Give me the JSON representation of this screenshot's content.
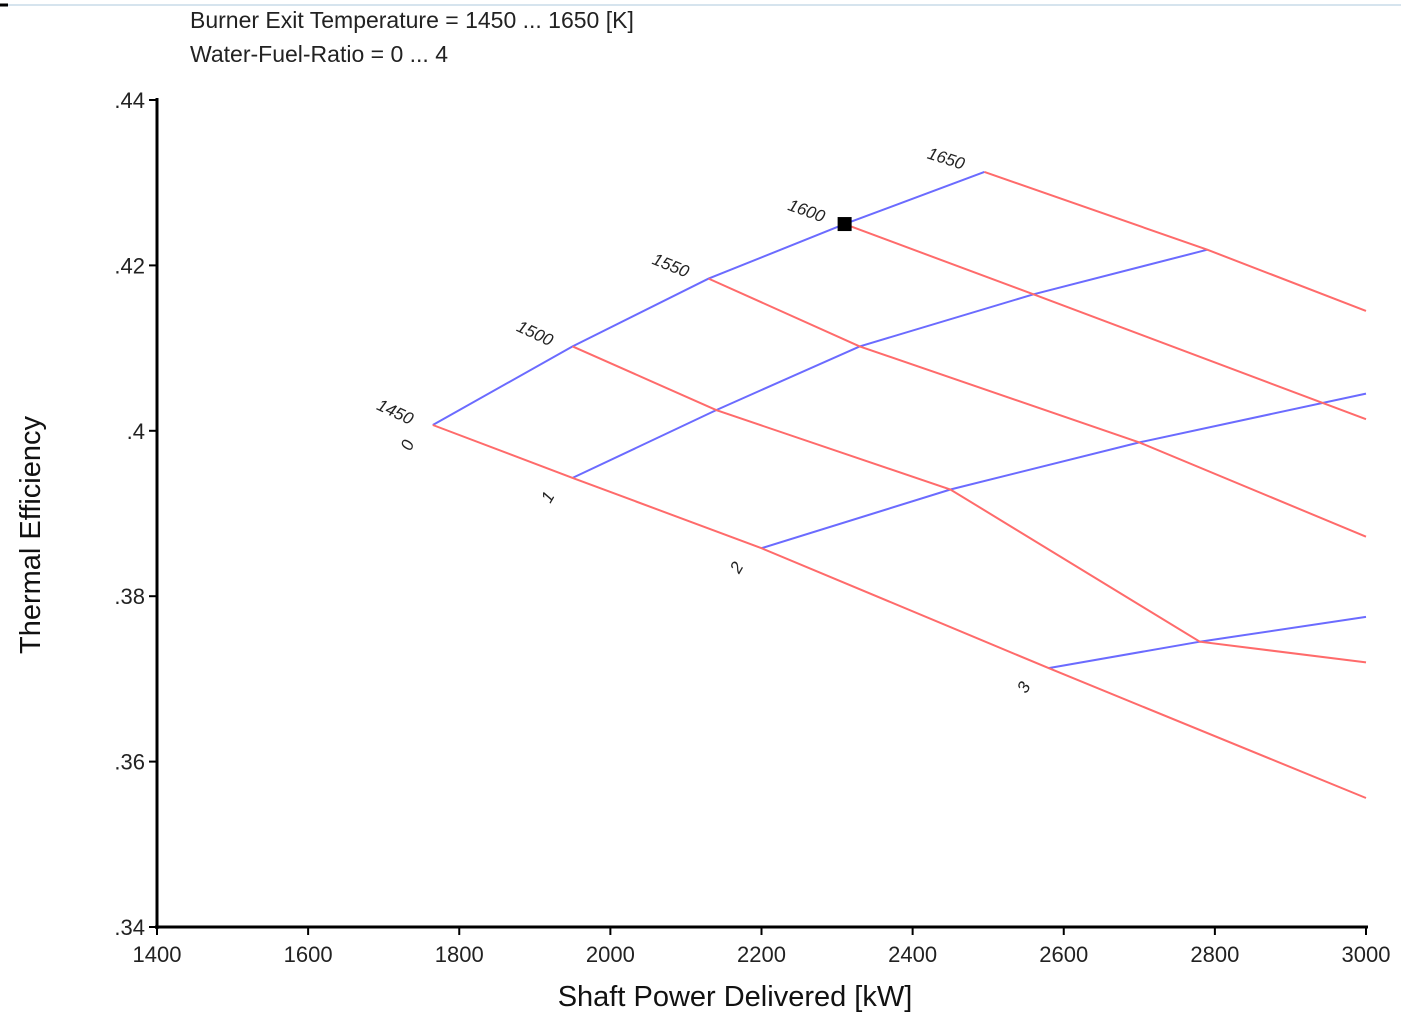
{
  "chart_data": {
    "type": "line",
    "header_lines": [
      "Burner Exit Temperature = 1450 ... 1650 [K]",
      "Water-Fuel-Ratio = 0 ... 4"
    ],
    "xlabel": "Shaft Power Delivered [kW]",
    "ylabel": "Thermal Efficiency",
    "xlim": [
      1400,
      3000
    ],
    "ylim": [
      0.34,
      0.44
    ],
    "x_ticks": [
      1400,
      1600,
      1800,
      2000,
      2200,
      2400,
      2600,
      2800,
      3000
    ],
    "x_tick_labels": [
      "1400",
      "1600",
      "1800",
      "2000",
      "2200",
      "2400",
      "2600",
      "2800",
      "3000"
    ],
    "y_ticks": [
      0.34,
      0.36,
      0.38,
      0.4,
      0.42,
      0.44
    ],
    "y_tick_labels": [
      ".34",
      ".36",
      ".38",
      ".4",
      ".42",
      ".44"
    ],
    "grid": false,
    "colors": {
      "constant_water_fuel_ratio": "#6b6bff",
      "constant_burner_temperature": "#ff6b6b",
      "axis": "#000000"
    },
    "series": [
      {
        "group": "water_fuel_ratio",
        "label": "0",
        "color": "#6b6bff",
        "points": [
          [
            1765,
            0.4007
          ],
          [
            1950,
            0.4102
          ],
          [
            2130,
            0.4184
          ],
          [
            2310,
            0.425
          ],
          [
            2495,
            0.4313
          ]
        ]
      },
      {
        "group": "water_fuel_ratio",
        "label": "1",
        "color": "#6b6bff",
        "points": [
          [
            1950,
            0.3943
          ],
          [
            2140,
            0.4025
          ],
          [
            2330,
            0.4102
          ],
          [
            2560,
            0.4165
          ],
          [
            2790,
            0.4219
          ]
        ]
      },
      {
        "group": "water_fuel_ratio",
        "label": "2",
        "color": "#6b6bff",
        "points": [
          [
            2200,
            0.3858
          ],
          [
            2450,
            0.3929
          ],
          [
            2700,
            0.3986
          ],
          [
            3000,
            0.4045
          ]
        ]
      },
      {
        "group": "water_fuel_ratio",
        "label": "3",
        "color": "#6b6bff",
        "points": [
          [
            2580,
            0.3713
          ],
          [
            2780,
            0.3745
          ],
          [
            3000,
            0.3775
          ]
        ]
      },
      {
        "group": "burner_temperature",
        "label": "1450",
        "color": "#ff6b6b",
        "points": [
          [
            1765,
            0.4007
          ],
          [
            1950,
            0.3943
          ],
          [
            2200,
            0.3858
          ],
          [
            2580,
            0.3713
          ],
          [
            3000,
            0.3556
          ]
        ]
      },
      {
        "group": "burner_temperature",
        "label": "1500",
        "color": "#ff6b6b",
        "points": [
          [
            1950,
            0.4102
          ],
          [
            2140,
            0.4025
          ],
          [
            2450,
            0.3929
          ],
          [
            2780,
            0.3745
          ],
          [
            3000,
            0.372
          ]
        ]
      },
      {
        "group": "burner_temperature",
        "label": "1550",
        "color": "#ff6b6b",
        "points": [
          [
            2130,
            0.4184
          ],
          [
            2330,
            0.4102
          ],
          [
            2700,
            0.3986
          ],
          [
            3000,
            0.3872
          ]
        ]
      },
      {
        "group": "burner_temperature",
        "label": "1600",
        "color": "#ff6b6b",
        "points": [
          [
            2310,
            0.425
          ],
          [
            2560,
            0.4165
          ],
          [
            3000,
            0.4014
          ]
        ]
      },
      {
        "group": "burner_temperature",
        "label": "1650",
        "color": "#ff6b6b",
        "points": [
          [
            2495,
            0.4313
          ],
          [
            2790,
            0.4219
          ],
          [
            3000,
            0.4145
          ]
        ]
      }
    ],
    "annotations": [
      {
        "text": "1450",
        "x": 1765,
        "y": 0.4007,
        "rotate": 25
      },
      {
        "text": "1500",
        "x": 1950,
        "y": 0.4102,
        "rotate": 25
      },
      {
        "text": "1550",
        "x": 2130,
        "y": 0.4184,
        "rotate": 22
      },
      {
        "text": "1600",
        "x": 2310,
        "y": 0.425,
        "rotate": 20
      },
      {
        "text": "1650",
        "x": 2495,
        "y": 0.4313,
        "rotate": 18
      },
      {
        "text": "0",
        "x": 1765,
        "y": 0.4007,
        "rotate": -70
      },
      {
        "text": "1",
        "x": 1950,
        "y": 0.3943,
        "rotate": -60
      },
      {
        "text": "2",
        "x": 2200,
        "y": 0.3858,
        "rotate": -60
      },
      {
        "text": "3",
        "x": 2580,
        "y": 0.3713,
        "rotate": -60
      }
    ],
    "marker": {
      "shape": "square",
      "x": 2310,
      "y": 0.425,
      "color": "#000000"
    }
  }
}
